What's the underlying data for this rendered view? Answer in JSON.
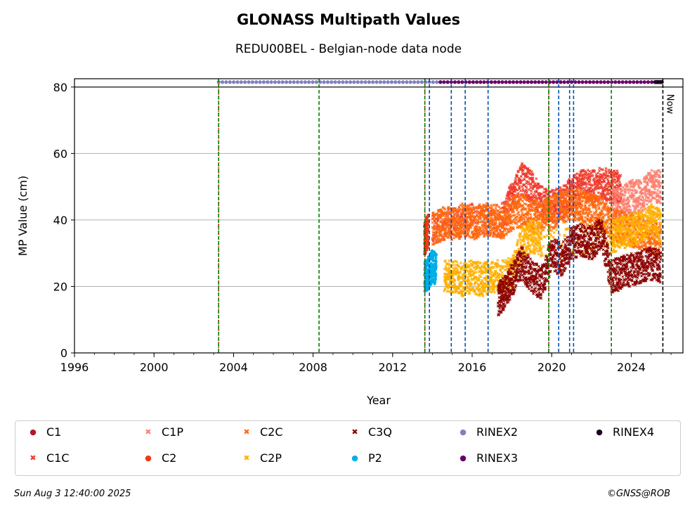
{
  "header": {
    "title": "GLONASS Multipath Values",
    "subtitle": "REDU00BEL - Belgian-node data node"
  },
  "footer": {
    "timestamp": "Sun Aug  3 12:40:00 2025",
    "copyright": "©GNSS@ROB"
  },
  "now_label": "Now",
  "chart_data": {
    "type": "scatter",
    "title": "GLONASS Multipath Values",
    "subtitle": "REDU00BEL - Belgian-node data node",
    "xlabel": "Year",
    "ylabel": "MP Value (cm)",
    "xlim": [
      1996,
      2026.6
    ],
    "ylim": [
      0,
      82.5
    ],
    "x_ticks": [
      1996,
      2000,
      2004,
      2008,
      2012,
      2016,
      2020,
      2024
    ],
    "x_tick_labels": [
      "1996",
      "2000",
      "2004",
      "2008",
      "2012",
      "2016",
      "2020",
      "2024"
    ],
    "y_ticks": [
      0,
      20,
      40,
      60,
      80
    ],
    "y_tick_labels": [
      "0",
      "20",
      "40",
      "60",
      "80"
    ],
    "grid": "horizontal",
    "legend_position": "bottom",
    "reference_line_y": 80,
    "now_x": 2025.59,
    "series": [
      {
        "name": "C1",
        "color": "#b2182b",
        "marker": "circle",
        "points": [
          [
            2013.6,
            34
          ],
          [
            2013.75,
            36
          ]
        ]
      },
      {
        "name": "C1C",
        "color": "#ef3b2c",
        "marker": "x",
        "points": [
          [
            2014.0,
            38
          ],
          [
            2015.0,
            39
          ],
          [
            2016.0,
            40
          ],
          [
            2017.5,
            40
          ],
          [
            2018.0,
            47
          ],
          [
            2018.5,
            52
          ],
          [
            2019.0,
            50
          ],
          [
            2019.5,
            45
          ],
          [
            2020.0,
            44
          ],
          [
            2020.5,
            45
          ],
          [
            2021.0,
            48
          ],
          [
            2021.5,
            50
          ],
          [
            2022.0,
            50
          ],
          [
            2022.5,
            51
          ],
          [
            2023.0,
            50
          ],
          [
            2023.5,
            50
          ]
        ]
      },
      {
        "name": "C1P",
        "color": "#fc8070",
        "marker": "x",
        "points": [
          [
            2023.0,
            45
          ],
          [
            2023.5,
            45
          ],
          [
            2024.0,
            47
          ],
          [
            2024.5,
            47
          ],
          [
            2025.0,
            50
          ],
          [
            2025.5,
            50
          ]
        ]
      },
      {
        "name": "C2",
        "color": "#f03b14",
        "marker": "circle",
        "points": [
          [
            2013.6,
            35
          ],
          [
            2013.8,
            37
          ]
        ]
      },
      {
        "name": "C2C",
        "color": "#ff6a10",
        "marker": "x",
        "points": [
          [
            2014.0,
            37
          ],
          [
            2014.5,
            39
          ],
          [
            2015.0,
            39
          ],
          [
            2015.5,
            40
          ],
          [
            2016.0,
            39
          ],
          [
            2016.5,
            40
          ],
          [
            2017.0,
            40
          ],
          [
            2017.5,
            39
          ],
          [
            2018.0,
            42
          ],
          [
            2018.5,
            43
          ],
          [
            2019.0,
            41
          ],
          [
            2019.5,
            41
          ],
          [
            2020.0,
            42
          ],
          [
            2020.5,
            44
          ],
          [
            2021.0,
            45
          ],
          [
            2021.5,
            44
          ],
          [
            2022.0,
            43
          ],
          [
            2022.5,
            42
          ],
          [
            2023.0,
            38
          ],
          [
            2023.5,
            38
          ],
          [
            2024.0,
            37
          ],
          [
            2024.5,
            36
          ],
          [
            2025.0,
            35
          ],
          [
            2025.5,
            34
          ]
        ]
      },
      {
        "name": "C2P",
        "color": "#ffb000",
        "marker": "x",
        "points": [
          [
            2014.6,
            23
          ],
          [
            2015.0,
            23
          ],
          [
            2015.5,
            22
          ],
          [
            2016.0,
            23
          ],
          [
            2016.5,
            22
          ],
          [
            2017.0,
            23
          ],
          [
            2017.5,
            23
          ],
          [
            2018.0,
            24
          ],
          [
            2018.5,
            33
          ],
          [
            2019.0,
            35
          ],
          [
            2019.5,
            34
          ],
          [
            2023.0,
            35
          ],
          [
            2023.5,
            36
          ],
          [
            2024.0,
            37
          ],
          [
            2024.5,
            38
          ],
          [
            2025.0,
            40
          ],
          [
            2025.5,
            38
          ]
        ]
      },
      {
        "name": "C3Q",
        "color": "#8b0000",
        "marker": "x",
        "points": [
          [
            2017.3,
            16
          ],
          [
            2017.6,
            18
          ],
          [
            2018.0,
            22
          ],
          [
            2018.5,
            27
          ],
          [
            2019.0,
            23
          ],
          [
            2019.5,
            21
          ],
          [
            2020.0,
            30
          ],
          [
            2020.5,
            28
          ],
          [
            2021.0,
            33
          ],
          [
            2021.5,
            34
          ],
          [
            2022.0,
            33
          ],
          [
            2022.5,
            36
          ],
          [
            2023.0,
            23
          ],
          [
            2023.5,
            24
          ],
          [
            2024.0,
            25
          ],
          [
            2024.5,
            26
          ],
          [
            2025.0,
            27
          ],
          [
            2025.5,
            26
          ]
        ]
      },
      {
        "name": "P2",
        "color": "#00aee8",
        "marker": "circle",
        "points": [
          [
            2013.6,
            23
          ],
          [
            2013.8,
            24
          ],
          [
            2014.0,
            26
          ],
          [
            2014.2,
            25
          ]
        ]
      },
      {
        "name": "RINEX2",
        "color": "#8080c0",
        "marker": "circle",
        "points": [
          [
            2003.25,
            81.5
          ],
          [
            2014.6,
            81.5
          ]
        ]
      },
      {
        "name": "RINEX3",
        "color": "#660066",
        "marker": "circle",
        "points": [
          [
            2014.4,
            81.5
          ],
          [
            2025.4,
            81.5
          ]
        ]
      },
      {
        "name": "RINEX4",
        "color": "#1a0022",
        "marker": "circle",
        "points": [
          [
            2025.2,
            81.5
          ],
          [
            2025.55,
            81.5
          ]
        ]
      }
    ],
    "event_lines": [
      {
        "x": 2003.25,
        "color": "#cc0000",
        "style": "dotted"
      },
      {
        "x": 2003.25,
        "color": "#008000",
        "style": "dashed"
      },
      {
        "x": 2008.3,
        "color": "#008000",
        "style": "dashed"
      },
      {
        "x": 2013.62,
        "color": "#cc0000",
        "style": "dotted"
      },
      {
        "x": 2013.62,
        "color": "#008000",
        "style": "dashed"
      },
      {
        "x": 2013.85,
        "color": "#0050b0",
        "style": "dashed"
      },
      {
        "x": 2014.95,
        "color": "#0050b0",
        "style": "dashed"
      },
      {
        "x": 2015.65,
        "color": "#0050b0",
        "style": "dashed"
      },
      {
        "x": 2016.8,
        "color": "#0050b0",
        "style": "dashed"
      },
      {
        "x": 2019.85,
        "color": "#cc0000",
        "style": "dotted"
      },
      {
        "x": 2019.85,
        "color": "#008000",
        "style": "dashed"
      },
      {
        "x": 2020.35,
        "color": "#0050b0",
        "style": "dashed"
      },
      {
        "x": 2020.9,
        "color": "#0050b0",
        "style": "dashed"
      },
      {
        "x": 2021.1,
        "color": "#0050b0",
        "style": "dashed"
      },
      {
        "x": 2023.0,
        "color": "#008000",
        "style": "dashed"
      },
      {
        "x": 2025.59,
        "color": "#000000",
        "style": "dashed"
      }
    ]
  },
  "legend": {
    "items": [
      {
        "label": "C1",
        "color": "#b2182b",
        "marker": "●"
      },
      {
        "label": "C1P",
        "color": "#fc8070",
        "marker": "✖"
      },
      {
        "label": "C2C",
        "color": "#ff6a10",
        "marker": "✖"
      },
      {
        "label": "C3Q",
        "color": "#8b0000",
        "marker": "✖"
      },
      {
        "label": "RINEX2",
        "color": "#8080c0",
        "marker": "●"
      },
      {
        "label": "RINEX4",
        "color": "#1a0022",
        "marker": "●"
      },
      {
        "label": "C1C",
        "color": "#ef3b2c",
        "marker": "✖"
      },
      {
        "label": "C2",
        "color": "#f03b14",
        "marker": "●"
      },
      {
        "label": "C2P",
        "color": "#ffb000",
        "marker": "✖"
      },
      {
        "label": "P2",
        "color": "#00aee8",
        "marker": "●"
      },
      {
        "label": "RINEX3",
        "color": "#660066",
        "marker": "●"
      }
    ]
  }
}
